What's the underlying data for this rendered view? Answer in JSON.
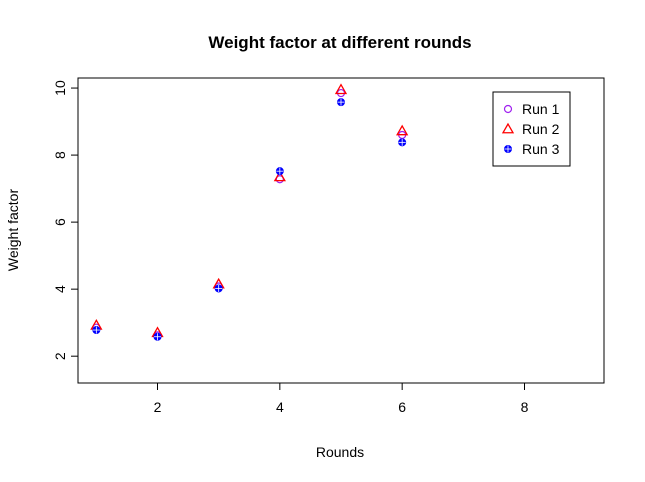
{
  "chart_data": {
    "type": "scatter",
    "title": "Weight factor at different rounds",
    "xlabel": "Rounds",
    "ylabel": "Weight factor",
    "xlim": [
      0.7,
      9.3
    ],
    "ylim": [
      1.2,
      10.3
    ],
    "xticks": [
      2,
      4,
      6,
      8
    ],
    "yticks": [
      2,
      4,
      6,
      8,
      10
    ],
    "grid": false,
    "legend": "top-right",
    "series": [
      {
        "name": "Run 1",
        "marker": "circle",
        "color": "#A020F0",
        "x": [
          1,
          2,
          3,
          4,
          5,
          6
        ],
        "y": [
          2.85,
          2.62,
          4.08,
          7.28,
          9.85,
          8.6
        ]
      },
      {
        "name": "Run 2",
        "marker": "triangle",
        "color": "#FF0000",
        "x": [
          1,
          2,
          3,
          4,
          5,
          6
        ],
        "y": [
          2.92,
          2.7,
          4.15,
          7.35,
          9.95,
          8.72
        ]
      },
      {
        "name": "Run 3",
        "marker": "crossed-circle",
        "color": "#0000FF",
        "x": [
          1,
          2,
          3,
          4,
          5,
          6
        ],
        "y": [
          2.78,
          2.58,
          4.02,
          7.52,
          9.58,
          8.38
        ]
      }
    ]
  }
}
